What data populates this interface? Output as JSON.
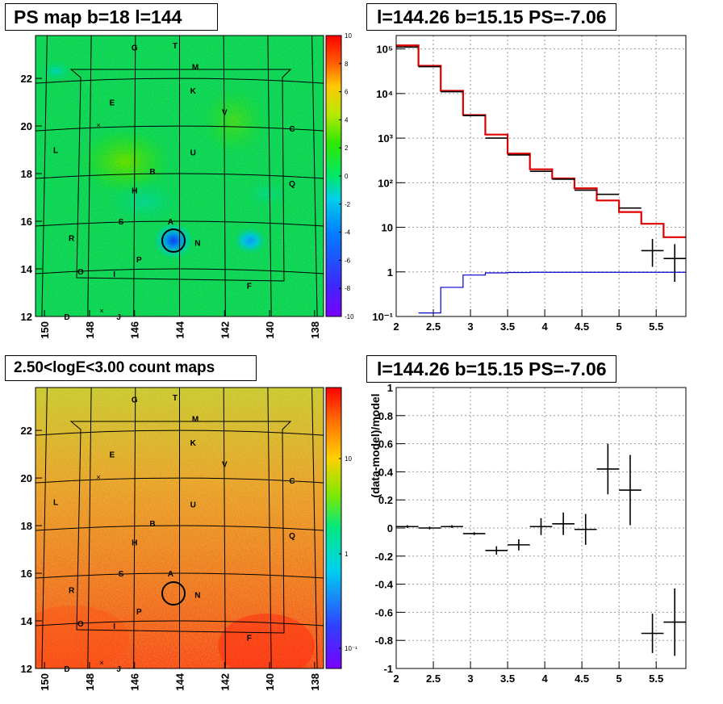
{
  "panels": {
    "ps_map": {
      "title": "PS map b=18 l=144",
      "x_ticks": [
        "150",
        "148",
        "146",
        "144",
        "142",
        "140",
        "138"
      ],
      "y_ticks": [
        "12",
        "14",
        "16",
        "18",
        "20",
        "22"
      ],
      "colorbar_ticks": [
        "10",
        "8",
        "6",
        "4",
        "2",
        "0",
        "-2",
        "-4",
        "-6",
        "-8",
        "-10"
      ]
    },
    "count_map": {
      "title": "2.50<logE<3.00 count maps",
      "x_ticks": [
        "150",
        "148",
        "146",
        "144",
        "142",
        "140",
        "138"
      ],
      "y_ticks": [
        "12",
        "14",
        "16",
        "18",
        "20",
        "22"
      ],
      "colorbar_ticks": [
        "10",
        "1",
        "10⁻¹"
      ]
    },
    "spectrum": {
      "title": "l=144.26 b=15.15 PS=-7.06"
    },
    "ratio": {
      "title": "l=144.26 b=15.15 PS=-7.06"
    }
  },
  "map_labels": [
    {
      "text": "G",
      "l": 146.0,
      "b": 23.3
    },
    {
      "text": "T",
      "l": 144.2,
      "b": 23.4
    },
    {
      "text": "M",
      "l": 143.3,
      "b": 22.5
    },
    {
      "text": "K",
      "l": 143.4,
      "b": 21.5
    },
    {
      "text": "E",
      "l": 147.0,
      "b": 21.0
    },
    {
      "text": "V",
      "l": 142.0,
      "b": 20.6
    },
    {
      "text": "C",
      "l": 139.0,
      "b": 19.9
    },
    {
      "text": "L",
      "l": 149.5,
      "b": 19.0
    },
    {
      "text": "U",
      "l": 143.4,
      "b": 18.9
    },
    {
      "text": "B",
      "l": 145.2,
      "b": 18.1
    },
    {
      "text": "Q",
      "l": 139.0,
      "b": 17.6
    },
    {
      "text": "H",
      "l": 146.0,
      "b": 17.3
    },
    {
      "text": "S",
      "l": 146.6,
      "b": 16.0
    },
    {
      "text": "A",
      "l": 144.4,
      "b": 16.0
    },
    {
      "text": "R",
      "l": 148.8,
      "b": 15.3
    },
    {
      "text": "N",
      "l": 143.2,
      "b": 15.1
    },
    {
      "text": "P",
      "l": 145.8,
      "b": 14.4
    },
    {
      "text": "O",
      "l": 148.4,
      "b": 13.9
    },
    {
      "text": "I",
      "l": 146.9,
      "b": 13.8
    },
    {
      "text": "F",
      "l": 140.9,
      "b": 13.3
    },
    {
      "text": "D",
      "l": 149.0,
      "b": 12.0
    },
    {
      "text": "J",
      "l": 146.7,
      "b": 12.0
    }
  ],
  "chart_data": [
    {
      "type": "line",
      "panel": "spectrum",
      "title": "l=144.26 b=15.15 PS=-7.06",
      "xlim": [
        2.0,
        5.9
      ],
      "ylim": [
        0.1,
        200000
      ],
      "yscale": "log",
      "x_ticks": [
        2,
        2.5,
        3,
        3.5,
        4,
        4.5,
        5,
        5.5
      ],
      "y_ticks": [
        {
          "v": 0.1,
          "label": "10⁻¹"
        },
        {
          "v": 1,
          "label": "1"
        },
        {
          "v": 10,
          "label": "10"
        },
        {
          "v": 100,
          "label": "10²"
        },
        {
          "v": 1000,
          "label": "10³"
        },
        {
          "v": 10000,
          "label": "10⁴"
        },
        {
          "v": 100000,
          "label": "10⁵"
        }
      ],
      "grid": true,
      "series": [
        {
          "kind": "data",
          "color": "#000000",
          "x": [
            2.15,
            2.45,
            2.75,
            3.05,
            3.35,
            3.65,
            3.95,
            4.25,
            4.55,
            4.85,
            5.15,
            5.45,
            5.75
          ],
          "y": [
            110000,
            40000,
            11000,
            3200,
            1000,
            420,
            180,
            120,
            68,
            55,
            27,
            3,
            2
          ],
          "yerr_lo": [
            null,
            null,
            null,
            null,
            null,
            null,
            null,
            null,
            null,
            null,
            null,
            1.7,
            1.4
          ],
          "yerr_hi": [
            null,
            null,
            null,
            null,
            null,
            null,
            null,
            null,
            null,
            null,
            null,
            2.5,
            2.2
          ]
        },
        {
          "kind": "model",
          "color": "#dd0000",
          "edges": [
            2.0,
            2.3,
            2.6,
            2.9,
            3.2,
            3.5,
            3.8,
            4.1,
            4.4,
            4.7,
            5.0,
            5.3,
            5.6,
            5.9
          ],
          "values": [
            120000,
            42000,
            11500,
            3300,
            1200,
            450,
            200,
            125,
            75,
            40,
            22,
            12,
            6
          ]
        },
        {
          "kind": "background",
          "color": "#0000cc",
          "edges": [
            2.3,
            2.6,
            2.9,
            3.2,
            3.5,
            3.8,
            4.1,
            4.4,
            4.7,
            5.0,
            5.3,
            5.6,
            5.9
          ],
          "values": [
            0.12,
            0.45,
            0.85,
            0.95,
            0.97,
            0.98,
            0.98,
            0.98,
            0.98,
            0.98,
            0.98,
            0.98
          ]
        }
      ]
    },
    {
      "type": "scatter",
      "panel": "ratio",
      "title": "l=144.26 b=15.15 PS=-7.06",
      "ylabel": "(data-model)/model",
      "xlim": [
        2.0,
        5.9
      ],
      "ylim": [
        -1.0,
        1.0
      ],
      "x_ticks": [
        2,
        2.5,
        3,
        3.5,
        4,
        4.5,
        5,
        5.5
      ],
      "y_ticks": [
        -1,
        -0.8,
        -0.6,
        -0.4,
        -0.2,
        0,
        0.2,
        0.4,
        0.6,
        0.8,
        1
      ],
      "grid": true,
      "x": [
        2.15,
        2.45,
        2.75,
        3.05,
        3.35,
        3.65,
        3.95,
        4.25,
        4.55,
        4.85,
        5.15,
        5.45,
        5.75
      ],
      "y": [
        0.01,
        0.0,
        0.01,
        -0.04,
        -0.16,
        -0.12,
        0.01,
        0.03,
        -0.01,
        0.42,
        0.27,
        -0.75,
        -0.67
      ],
      "yerr": [
        0.01,
        0.01,
        0.01,
        0.01,
        0.03,
        0.04,
        0.06,
        0.08,
        0.11,
        0.18,
        0.25,
        0.14,
        0.24
      ],
      "xerr": 0.15
    }
  ],
  "colors": {
    "red_model": "#dd0000",
    "blue_background": "#0000cc",
    "data_points": "#000000"
  }
}
